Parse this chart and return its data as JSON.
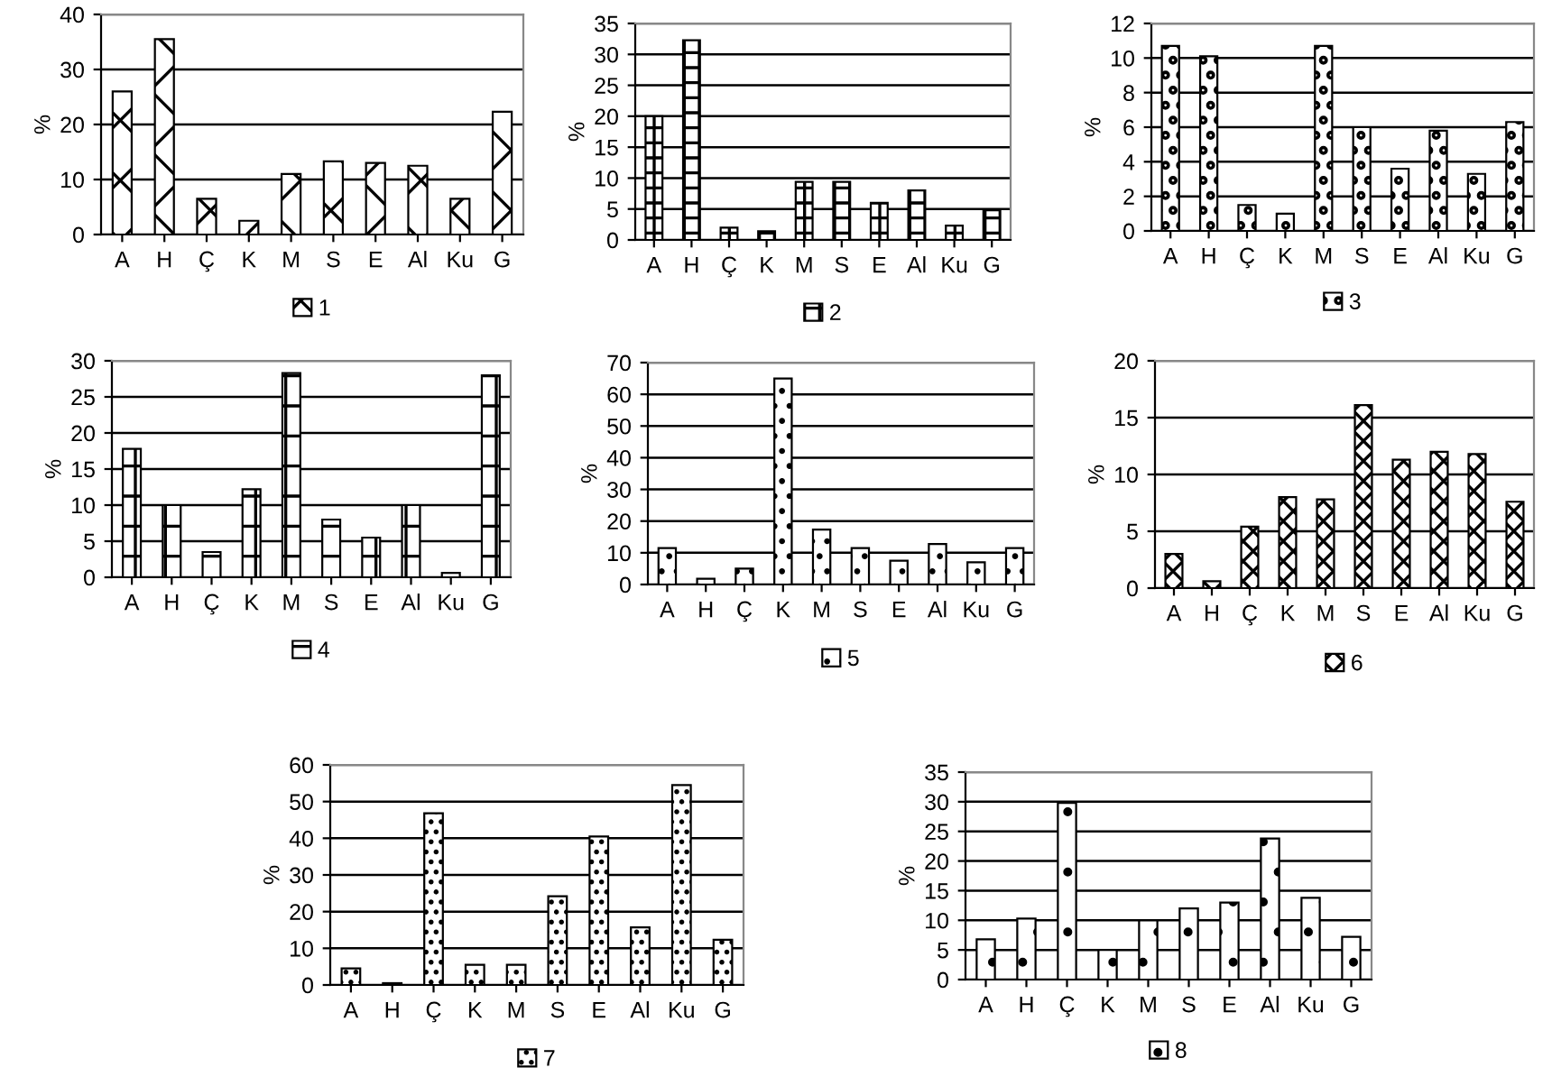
{
  "chart_data": [
    {
      "type": "bar",
      "ylabel": "%",
      "categories": [
        "A",
        "H",
        "Ç",
        "K",
        "M",
        "S",
        "E",
        "Al",
        "Ku",
        "G"
      ],
      "ylim": [
        0,
        40
      ],
      "yticks": [
        0,
        10,
        20,
        30,
        40
      ],
      "grid": "y",
      "legend": "bottom",
      "series": [
        {
          "name": "1",
          "color": "#000000",
          "values": [
            26,
            35.5,
            6.5,
            2.5,
            11,
            13.3,
            13,
            12.5,
            6.5,
            22.3
          ]
        }
      ]
    },
    {
      "type": "bar",
      "ylabel": "%",
      "categories": [
        "A",
        "H",
        "Ç",
        "K",
        "M",
        "S",
        "E",
        "Al",
        "Ku",
        "G"
      ],
      "ylim": [
        0,
        35
      ],
      "yticks": [
        0,
        5,
        10,
        15,
        20,
        25,
        30,
        35
      ],
      "grid": "y",
      "legend": "bottom",
      "series": [
        {
          "name": "2",
          "color": "#000000",
          "values": [
            20,
            32.3,
            2,
            1.4,
            9.4,
            9.4,
            6,
            8,
            2.3,
            4.8
          ]
        }
      ]
    },
    {
      "type": "bar",
      "ylabel": "%",
      "categories": [
        "A",
        "H",
        "Ç",
        "K",
        "M",
        "S",
        "E",
        "Al",
        "Ku",
        "G"
      ],
      "ylim": [
        0,
        12
      ],
      "yticks": [
        0,
        2,
        4,
        6,
        8,
        10,
        12
      ],
      "grid": "y",
      "legend": "bottom",
      "series": [
        {
          "name": "3",
          "color": "#000000",
          "values": [
            10.7,
            10.1,
            1.5,
            1,
            10.7,
            6,
            3.6,
            5.8,
            3.3,
            6.3
          ]
        }
      ]
    },
    {
      "type": "bar",
      "ylabel": "%",
      "categories": [
        "A",
        "H",
        "Ç",
        "K",
        "M",
        "S",
        "E",
        "Al",
        "Ku",
        "G"
      ],
      "ylim": [
        0,
        30
      ],
      "yticks": [
        0,
        5,
        10,
        15,
        20,
        25,
        30
      ],
      "grid": "y",
      "legend": "bottom",
      "series": [
        {
          "name": "4",
          "color": "#000000",
          "values": [
            17.8,
            10,
            3.5,
            12.2,
            28.3,
            8,
            5.5,
            10,
            0.6,
            28
          ]
        }
      ]
    },
    {
      "type": "bar",
      "ylabel": "%",
      "categories": [
        "A",
        "H",
        "Ç",
        "K",
        "M",
        "S",
        "E",
        "Al",
        "Ku",
        "G"
      ],
      "ylim": [
        0,
        70
      ],
      "yticks": [
        0,
        10,
        20,
        30,
        40,
        50,
        60,
        70
      ],
      "grid": "y",
      "legend": "bottom",
      "series": [
        {
          "name": "5",
          "color": "#000000",
          "values": [
            11.5,
            1.8,
            5,
            65,
            17.3,
            11.5,
            7.5,
            12.8,
            7,
            11.5
          ]
        }
      ]
    },
    {
      "type": "bar",
      "ylabel": "%",
      "categories": [
        "A",
        "H",
        "Ç",
        "K",
        "M",
        "S",
        "E",
        "Al",
        "Ku",
        "G"
      ],
      "ylim": [
        0,
        20
      ],
      "yticks": [
        0,
        5,
        10,
        15,
        20
      ],
      "grid": "y",
      "legend": "bottom",
      "series": [
        {
          "name": "6",
          "color": "#000000",
          "values": [
            3,
            0.6,
            5.4,
            8,
            7.8,
            16.1,
            11.3,
            12,
            11.8,
            7.6
          ]
        }
      ]
    },
    {
      "type": "bar",
      "ylabel": "%",
      "categories": [
        "A",
        "H",
        "Ç",
        "K",
        "M",
        "S",
        "E",
        "Al",
        "Ku",
        "G"
      ],
      "ylim": [
        0,
        60
      ],
      "yticks": [
        0,
        10,
        20,
        30,
        40,
        50,
        60
      ],
      "grid": "y",
      "legend": "bottom",
      "series": [
        {
          "name": "7",
          "color": "#000000",
          "values": [
            4.5,
            0.5,
            46.8,
            5.5,
            5.5,
            24.2,
            40.5,
            15.7,
            54.5,
            12.3
          ]
        }
      ]
    },
    {
      "type": "bar",
      "ylabel": "%",
      "categories": [
        "A",
        "H",
        "Ç",
        "K",
        "M",
        "S",
        "E",
        "Al",
        "Ku",
        "G"
      ],
      "ylim": [
        0,
        35
      ],
      "yticks": [
        0,
        5,
        10,
        15,
        20,
        25,
        30,
        35
      ],
      "grid": "y",
      "legend": "bottom",
      "series": [
        {
          "name": "8",
          "color": "#000000",
          "values": [
            6.8,
            10.3,
            29.8,
            5,
            10,
            12,
            13,
            23.8,
            13.8,
            7.2
          ]
        }
      ]
    }
  ]
}
